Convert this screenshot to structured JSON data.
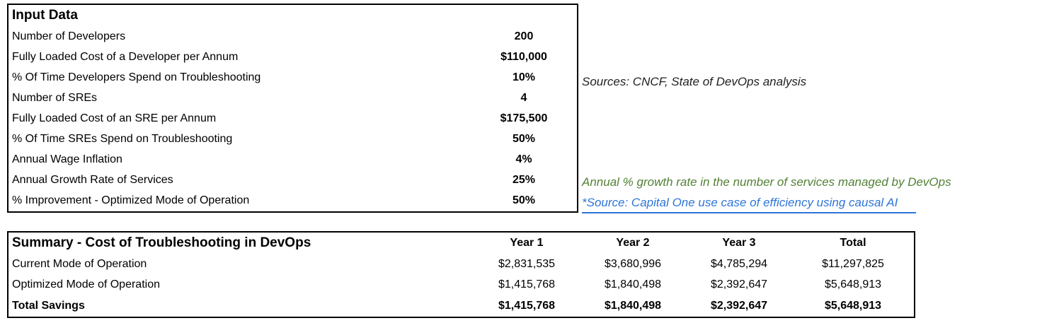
{
  "input_table": {
    "title": "Input Data",
    "rows": [
      {
        "label": "Number of Developers",
        "value": "200"
      },
      {
        "label": "Fully Loaded Cost of a Developer per Annum",
        "value": "$110,000"
      },
      {
        "label": "% Of Time Developers Spend on Troubleshooting",
        "value": "10%"
      },
      {
        "label": "Number of SREs",
        "value": "4"
      },
      {
        "label": "Fully Loaded Cost of an SRE per Annum",
        "value": "$175,500"
      },
      {
        "label": "% Of Time SREs Spend on Troubleshooting",
        "value": "50%"
      },
      {
        "label": "Annual Wage Inflation",
        "value": "4%"
      },
      {
        "label": "Annual Growth Rate of Services",
        "value": "25%"
      },
      {
        "label": "% Improvement - Optimized Mode of Operation",
        "value": "50%"
      }
    ]
  },
  "notes": {
    "sources": "Sources: CNCF, State of DevOps analysis",
    "growth": "Annual % growth rate in the number of services managed by DevOps",
    "link": "*Source: Capital One use case of efficiency using causal AI"
  },
  "summary_table": {
    "title": "Summary - Cost of Troubleshooting in DevOps",
    "columns": [
      "Year 1",
      "Year 2",
      "Year 3",
      "Total"
    ],
    "rows": [
      {
        "label": "Current Mode of Operation",
        "values": [
          "$2,831,535",
          "$3,680,996",
          "$4,785,294",
          "$11,297,825"
        ]
      },
      {
        "label": "Optimized Mode of Operation",
        "values": [
          "$1,415,768",
          "$1,840,498",
          "$2,392,647",
          "$5,648,913"
        ]
      },
      {
        "label": "Total Savings",
        "values": [
          "$1,415,768",
          "$1,840,498",
          "$2,392,647",
          "$5,648,913"
        ]
      }
    ]
  },
  "colors": {
    "note_green": "#538135",
    "link_blue": "#2e75d8",
    "border": "#000000"
  }
}
